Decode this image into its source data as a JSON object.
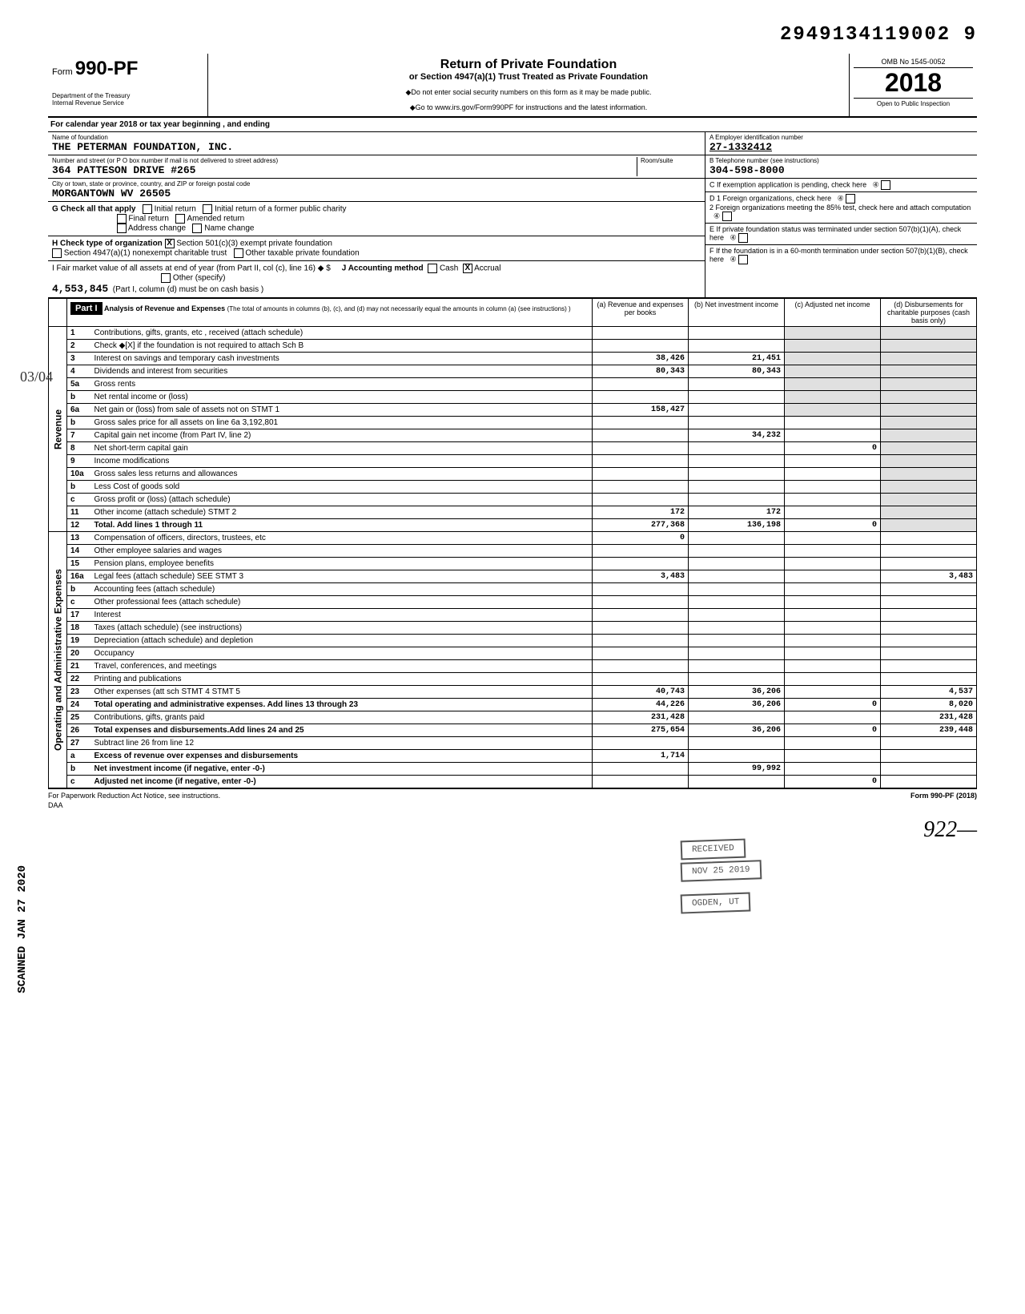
{
  "top_number": "2949134119002 9",
  "form": {
    "prefix": "Form",
    "number": "990-PF",
    "dept": "Department of the Treasury\nInternal Revenue Service"
  },
  "header": {
    "title": "Return of Private Foundation",
    "subtitle": "or Section 4947(a)(1) Trust Treated as Private Foundation",
    "notice1": "◆Do not enter social security numbers on this form as it may be made public.",
    "notice2": "◆Go to www.irs.gov/Form990PF for instructions and the latest information.",
    "omb": "OMB No 1545-0052",
    "year": "2018",
    "open": "Open to Public Inspection"
  },
  "cal_year": "For calendar year 2018 or tax year beginning                , and ending",
  "foundation": {
    "name_label": "Name of foundation",
    "name": "THE PETERMAN FOUNDATION, INC.",
    "street_label": "Number and street (or P O box number if mail is not delivered to street address)",
    "room_label": "Room/suite",
    "street": "364 PATTESON DRIVE #265",
    "city_label": "City or town, state or province, country, and ZIP or foreign postal code",
    "city": "MORGANTOWN          WV 26505"
  },
  "right_info": {
    "a_label": "A   Employer identification number",
    "a_value": "27-1332412",
    "b_label": "B   Telephone number (see instructions)",
    "b_value": "304-598-8000",
    "c_label": "C   If exemption application is pending, check here",
    "d1": "D  1  Foreign organizations, check here",
    "d2": "2  Foreign organizations meeting the 85% test, check here and attach computation",
    "e": "E   If private foundation status was terminated under section 507(b)(1)(A), check here",
    "f": "F   If the foundation is in a 60-month termination under section 507(b)(1)(B), check here"
  },
  "g": {
    "label": "G  Check all that apply",
    "opts": [
      "Initial return",
      "Initial return of a former public charity",
      "Final return",
      "Amended return",
      "Address change",
      "Name change"
    ]
  },
  "h": {
    "label": "H  Check type of organization",
    "checked": "X",
    "opt1": "Section 501(c)(3) exempt private foundation",
    "opt2": "Section 4947(a)(1) nonexempt charitable trust",
    "opt3": "Other taxable private foundation"
  },
  "i": {
    "label": "I   Fair market value of all assets at end of year (from Part II, col (c), line 16) ◆ $",
    "value": "4,553,845",
    "j": "J   Accounting method",
    "cash": "Cash",
    "accrual": "Accrual",
    "accrual_x": "X",
    "other": "Other (specify)",
    "note": "(Part I, column (d) must be on cash basis )"
  },
  "part1": {
    "label": "Part I",
    "title": "Analysis of Revenue and Expenses",
    "note": "(The total of amounts in columns (b), (c), and (d) may not necessarily equal the amounts in column (a) (see instructions) )",
    "cols": {
      "a": "(a) Revenue and expenses per books",
      "b": "(b) Net investment income",
      "c": "(c) Adjusted net income",
      "d": "(d) Disbursements for charitable purposes (cash basis only)"
    }
  },
  "rows": [
    {
      "n": "1",
      "desc": "Contributions, gifts, grants, etc , received (attach schedule)"
    },
    {
      "n": "2",
      "desc": "Check ◆[X] if the foundation is not required to attach Sch B"
    },
    {
      "n": "3",
      "desc": "Interest on savings and temporary cash investments",
      "a": "38,426",
      "b": "21,451"
    },
    {
      "n": "4",
      "desc": "Dividends and interest from securities",
      "a": "80,343",
      "b": "80,343"
    },
    {
      "n": "5a",
      "desc": "Gross rents"
    },
    {
      "n": "b",
      "desc": "Net rental income or (loss)"
    },
    {
      "n": "6a",
      "desc": "Net gain or (loss) from sale of assets not on STMT 1",
      "a": "158,427"
    },
    {
      "n": "b",
      "desc": "Gross sales price for all assets on line 6a   3,192,801"
    },
    {
      "n": "7",
      "desc": "Capital gain net income (from Part IV, line 2)",
      "b": "34,232"
    },
    {
      "n": "8",
      "desc": "Net short-term capital gain",
      "c": "0"
    },
    {
      "n": "9",
      "desc": "Income modifications"
    },
    {
      "n": "10a",
      "desc": "Gross sales less returns and allowances"
    },
    {
      "n": "b",
      "desc": "Less Cost of goods sold"
    },
    {
      "n": "c",
      "desc": "Gross profit or (loss) (attach schedule)"
    },
    {
      "n": "11",
      "desc": "Other income (attach schedule)      STMT 2",
      "a": "172",
      "b": "172"
    },
    {
      "n": "12",
      "desc": "Total. Add lines 1 through 11",
      "a": "277,368",
      "b": "136,198",
      "c": "0",
      "bold": true
    },
    {
      "n": "13",
      "desc": "Compensation of officers, directors, trustees, etc",
      "a": "0"
    },
    {
      "n": "14",
      "desc": "Other employee salaries and wages"
    },
    {
      "n": "15",
      "desc": "Pension plans, employee benefits"
    },
    {
      "n": "16a",
      "desc": "Legal fees (attach schedule) SEE  STMT 3",
      "a": "3,483",
      "d": "3,483"
    },
    {
      "n": "b",
      "desc": "Accounting fees (attach schedule)"
    },
    {
      "n": "c",
      "desc": "Other professional fees (attach schedule)"
    },
    {
      "n": "17",
      "desc": "Interest"
    },
    {
      "n": "18",
      "desc": "Taxes (attach schedule) (see instructions)"
    },
    {
      "n": "19",
      "desc": "Depreciation (attach schedule) and depletion"
    },
    {
      "n": "20",
      "desc": "Occupancy"
    },
    {
      "n": "21",
      "desc": "Travel, conferences, and meetings"
    },
    {
      "n": "22",
      "desc": "Printing and publications"
    },
    {
      "n": "23",
      "desc": "Other expenses (att sch STMT 4    STMT 5",
      "a": "40,743",
      "b": "36,206",
      "d": "4,537"
    },
    {
      "n": "24",
      "desc": "Total operating and administrative expenses. Add lines 13 through 23",
      "a": "44,226",
      "b": "36,206",
      "c": "0",
      "d": "8,020",
      "bold": true
    },
    {
      "n": "25",
      "desc": "Contributions, gifts, grants paid",
      "a": "231,428",
      "d": "231,428"
    },
    {
      "n": "26",
      "desc": "Total expenses and disbursements.Add lines 24 and 25",
      "a": "275,654",
      "b": "36,206",
      "c": "0",
      "d": "239,448",
      "bold": true
    },
    {
      "n": "27",
      "desc": "Subtract line 26 from line 12"
    },
    {
      "n": "a",
      "desc": "Excess of revenue over expenses and disbursements",
      "a": "1,714",
      "bold": true
    },
    {
      "n": "b",
      "desc": "Net investment income (if negative, enter -0-)",
      "b": "99,992",
      "bold": true
    },
    {
      "n": "c",
      "desc": "Adjusted net income (if negative, enter -0-)",
      "c": "0",
      "bold": true
    }
  ],
  "section_labels": {
    "revenue": "Revenue",
    "expenses": "Operating and Administrative Expenses"
  },
  "stamps": {
    "received": "RECEIVED",
    "date": "NOV 25 2019",
    "ogden": "OGDEN, UT"
  },
  "scanned": "SCANNED JAN 27 2020",
  "margin_note": "03/04",
  "footer": {
    "left": "For Paperwork Reduction Act Notice, see instructions.",
    "daa": "DAA",
    "right": "Form 990-PF (2018)"
  },
  "signature": "922—"
}
